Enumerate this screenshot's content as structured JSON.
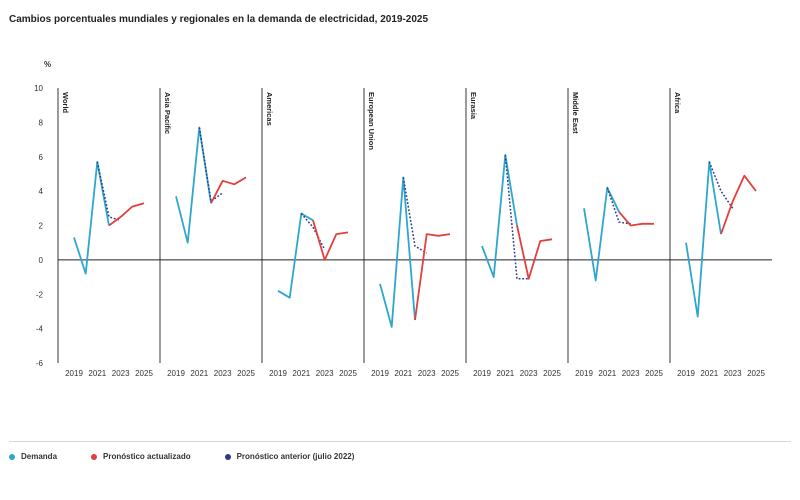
{
  "chart_data": {
    "type": "line",
    "title": "Cambios porcentuales mundiales y regionales en la demanda de electricidad, 2019-2025",
    "ylabel": "%",
    "ylim": [
      -6,
      10
    ],
    "yticks": [
      -6,
      -4,
      -2,
      0,
      2,
      4,
      6,
      8,
      10
    ],
    "xticks": [
      "2019",
      "2021",
      "2023",
      "2025"
    ],
    "years": [
      2019,
      2020,
      2021,
      2022,
      2023,
      2024,
      2025
    ],
    "series_names": {
      "demand": "Demanda",
      "updated": "Pronóstico actualizado",
      "previous": "Pronóstico anterior (julio 2022)"
    },
    "colors": {
      "demand": "#2ea7cf",
      "updated": "#e2403c",
      "previous": "#2d3a8c",
      "axis": "#222222"
    },
    "panels": [
      {
        "name": "World",
        "demand": [
          [
            2019,
            1.3
          ],
          [
            2020,
            -0.8
          ],
          [
            2021,
            5.7
          ],
          [
            2022,
            2.0
          ]
        ],
        "updated": [
          [
            2022,
            2.0
          ],
          [
            2023,
            2.5
          ],
          [
            2024,
            3.1
          ],
          [
            2025,
            3.3
          ]
        ],
        "previous": [
          [
            2021,
            5.7
          ],
          [
            2022,
            2.5
          ],
          [
            2023,
            2.3
          ]
        ]
      },
      {
        "name": "Asia Pacific",
        "demand": [
          [
            2019,
            3.7
          ],
          [
            2020,
            1.0
          ],
          [
            2021,
            7.7
          ],
          [
            2022,
            3.3
          ]
        ],
        "updated": [
          [
            2022,
            3.3
          ],
          [
            2023,
            4.6
          ],
          [
            2024,
            4.4
          ],
          [
            2025,
            4.8
          ]
        ],
        "previous": [
          [
            2021,
            7.7
          ],
          [
            2022,
            3.4
          ],
          [
            2023,
            3.9
          ]
        ]
      },
      {
        "name": "Americas",
        "demand": [
          [
            2019,
            -1.8
          ],
          [
            2020,
            -2.2
          ],
          [
            2021,
            2.7
          ],
          [
            2022,
            2.3
          ]
        ],
        "updated": [
          [
            2022,
            2.3
          ],
          [
            2023,
            0.0
          ],
          [
            2024,
            1.5
          ],
          [
            2025,
            1.6
          ]
        ],
        "previous": [
          [
            2021,
            2.7
          ],
          [
            2022,
            1.9
          ],
          [
            2023,
            0.6
          ]
        ]
      },
      {
        "name": "European Union",
        "demand": [
          [
            2019,
            -1.4
          ],
          [
            2020,
            -3.9
          ],
          [
            2021,
            4.8
          ],
          [
            2022,
            -3.5
          ]
        ],
        "updated": [
          [
            2022,
            -3.5
          ],
          [
            2023,
            1.5
          ],
          [
            2024,
            1.4
          ],
          [
            2025,
            1.5
          ]
        ],
        "previous": [
          [
            2021,
            4.8
          ],
          [
            2022,
            0.8
          ],
          [
            2023,
            0.4
          ]
        ]
      },
      {
        "name": "Eurasia",
        "demand": [
          [
            2019,
            0.8
          ],
          [
            2020,
            -1.0
          ],
          [
            2021,
            6.1
          ],
          [
            2022,
            2.0
          ]
        ],
        "updated": [
          [
            2022,
            2.0
          ],
          [
            2023,
            -1.1
          ],
          [
            2024,
            1.1
          ],
          [
            2025,
            1.2
          ]
        ],
        "previous": [
          [
            2021,
            6.1
          ],
          [
            2022,
            -1.1
          ],
          [
            2023,
            -1.1
          ]
        ]
      },
      {
        "name": "Middle East",
        "demand": [
          [
            2019,
            3.0
          ],
          [
            2020,
            -1.2
          ],
          [
            2021,
            4.2
          ],
          [
            2022,
            2.8
          ]
        ],
        "updated": [
          [
            2022,
            2.8
          ],
          [
            2023,
            2.0
          ],
          [
            2024,
            2.1
          ],
          [
            2025,
            2.1
          ]
        ],
        "previous": [
          [
            2021,
            4.2
          ],
          [
            2022,
            2.2
          ],
          [
            2023,
            2.1
          ]
        ]
      },
      {
        "name": "Africa",
        "demand": [
          [
            2019,
            1.0
          ],
          [
            2020,
            -3.3
          ],
          [
            2021,
            5.7
          ],
          [
            2022,
            1.5
          ]
        ],
        "updated": [
          [
            2022,
            1.5
          ],
          [
            2023,
            3.4
          ],
          [
            2024,
            4.9
          ],
          [
            2025,
            4.0
          ]
        ],
        "previous": [
          [
            2021,
            5.7
          ],
          [
            2022,
            4.0
          ],
          [
            2023,
            3.0
          ]
        ]
      }
    ]
  }
}
